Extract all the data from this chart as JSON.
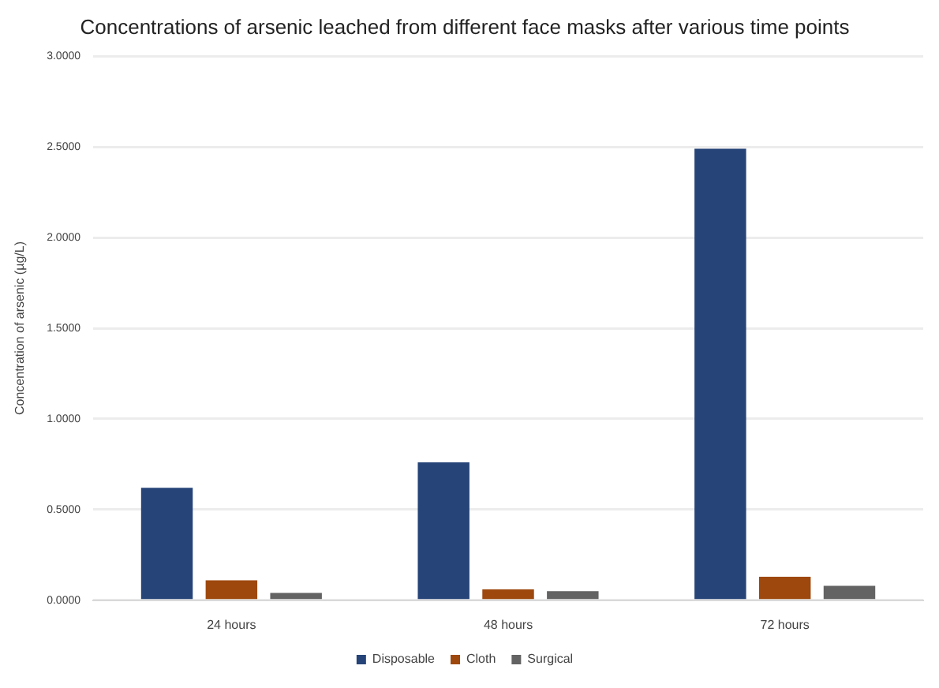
{
  "chart_data": {
    "type": "bar",
    "title": "Concentrations of arsenic leached from different face masks after various time points",
    "ylabel": "Concentration of arsenic (µg/L)",
    "categories": [
      "24 hours",
      "48 hours",
      "72 hours"
    ],
    "series": [
      {
        "name": "Disposable",
        "color": "#264478",
        "values": [
          0.62,
          0.76,
          2.49
        ]
      },
      {
        "name": "Cloth",
        "color": "#9e480e",
        "values": [
          0.11,
          0.06,
          0.13
        ]
      },
      {
        "name": "Surgical",
        "color": "#636363",
        "values": [
          0.04,
          0.05,
          0.08
        ]
      }
    ],
    "ylim": [
      0,
      3
    ],
    "yticks": [
      {
        "value": 0,
        "label": "0.0000"
      },
      {
        "value": 0.5,
        "label": "0.5000"
      },
      {
        "value": 1,
        "label": "1.0000"
      },
      {
        "value": 1.5,
        "label": "1.5000"
      },
      {
        "value": 2,
        "label": "2.0000"
      },
      {
        "value": 2.5,
        "label": "2.5000"
      },
      {
        "value": 3,
        "label": "3.0000"
      }
    ],
    "grid": "y",
    "legend": "bottom"
  }
}
